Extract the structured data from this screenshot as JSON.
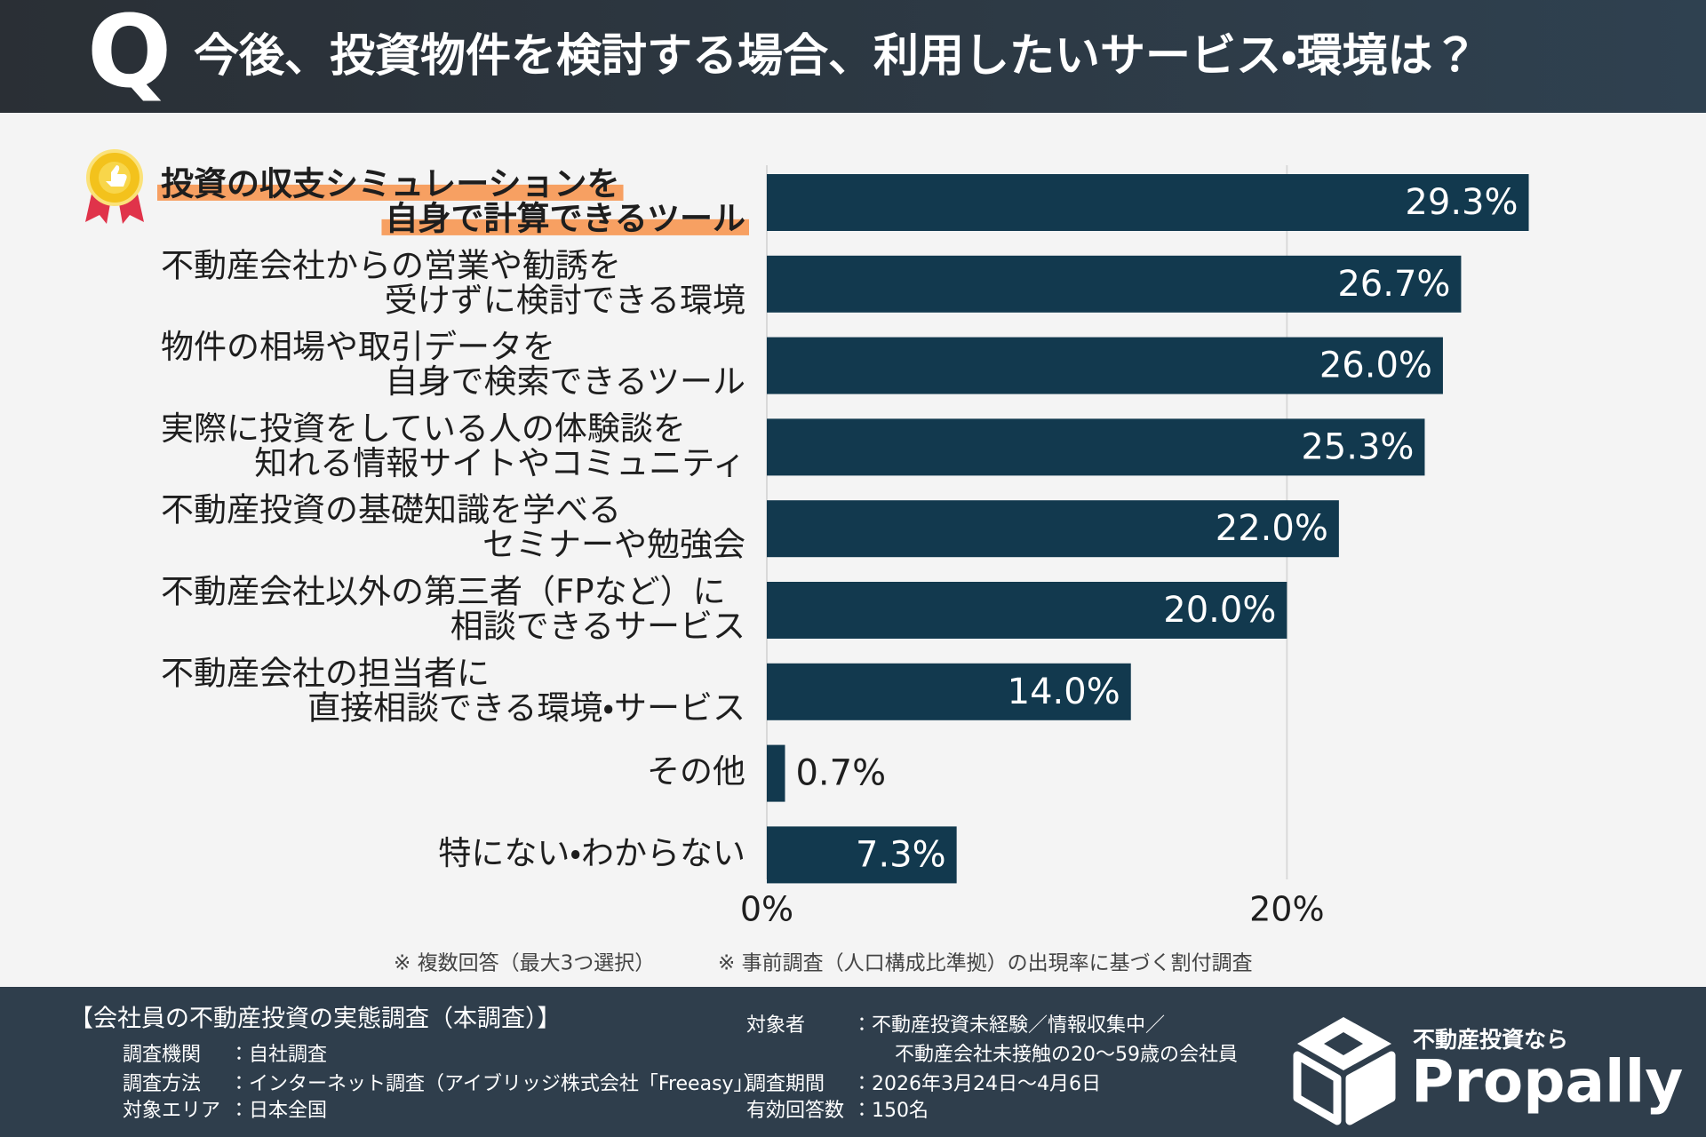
{
  "chart_data": {
    "type": "bar",
    "orientation": "horizontal",
    "title_mark": "Q",
    "title": "今後、投資物件を検討する場合、利用したいサービス・環境は？",
    "categories": [
      [
        "投資の収支シミュレーションを",
        "自身で計算できるツール"
      ],
      [
        "不動産会社からの営業や勧誘を",
        "受けずに検討できる環境"
      ],
      [
        "物件の相場や取引データを",
        "自身で検索できるツール"
      ],
      [
        "実際に投資をしている人の体験談を",
        "知れる情報サイトやコミュニティ"
      ],
      [
        "不動産投資の基礎知識を学べる",
        "セミナーや勉強会"
      ],
      [
        "不動産会社以外の第三者（FPなど）に",
        "相談できるサービス"
      ],
      [
        "不動産会社の担当者に",
        "直接相談できる環境・サービス"
      ],
      [
        "その他"
      ],
      [
        "特にない・わからない"
      ]
    ],
    "values": [
      29.3,
      26.7,
      26.0,
      25.3,
      22.0,
      20.0,
      14.0,
      0.7,
      7.3
    ],
    "value_labels": [
      "29.3%",
      "26.7%",
      "26.0%",
      "25.3%",
      "22.0%",
      "20.0%",
      "14.0%",
      "0.7%",
      "7.3%"
    ],
    "color": "#12394e",
    "xlim": [
      0,
      30
    ],
    "xticks": [
      {
        "value": 0,
        "label": "0%"
      },
      {
        "value": 20,
        "label": "20%"
      }
    ],
    "grid": true,
    "notes": [
      "※ 複数回答（最大3つ選択）",
      "※ 事前調査（人口構成比準拠）の出現率に基づく割付調査"
    ],
    "survey": {
      "heading": "【会社員の不動産投資の実態調査（本調査）】",
      "left": [
        {
          "label": "調査機関",
          "value": [
            "：自社調査"
          ]
        },
        {
          "label": "調査方法",
          "value": [
            "：インターネット調査（アイブリッジ株式会社「Freeasy」）"
          ]
        },
        {
          "label": "対象エリア",
          "value": [
            "：日本全国"
          ]
        }
      ],
      "right": [
        {
          "label": "対象者",
          "value": [
            "：不動産投資未経験／情報収集中／",
            "不動産会社未接触の20〜59歳の会社員"
          ]
        },
        {
          "label": "調査期間",
          "value": [
            "：2026年3月24日〜4月6日"
          ]
        },
        {
          "label": "有効回答数",
          "value": [
            "：150名"
          ]
        }
      ]
    },
    "logo": {
      "tagline": "不動産投資なら",
      "name": "Propally"
    }
  }
}
